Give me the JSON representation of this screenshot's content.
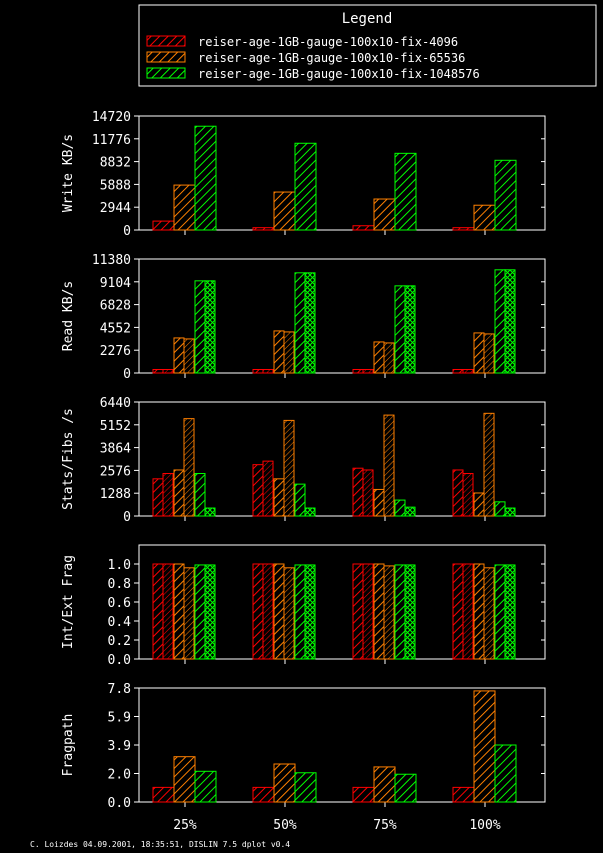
{
  "legend": {
    "title": "Legend",
    "entries": [
      {
        "label": "reiser-age-1GB-gauge-100x10-fix-4096",
        "color": "#ff0000"
      },
      {
        "label": "reiser-age-1GB-gauge-100x10-fix-65536",
        "color": "#ff8000"
      },
      {
        "label": "reiser-age-1GB-gauge-100x10-fix-1048576",
        "color": "#00ff00"
      }
    ]
  },
  "footer": "C. Loizdes 04.09.2001, 18:35:51, DISLIN 7.5 dplot v0.4",
  "chart_data": {
    "type": "bar",
    "categories": [
      "25%",
      "50%",
      "75%",
      "100%"
    ],
    "panels": [
      {
        "ylabel": "Write KB/s",
        "yticks": [
          "0",
          "2944",
          "5888",
          "8832",
          "11776",
          "14720"
        ],
        "ylim": [
          0,
          14720
        ],
        "paired": false,
        "series": [
          {
            "values": [
              1150,
              300,
              550,
              300
            ]
          },
          {
            "values": [
              5800,
              4900,
              4000,
              3200
            ]
          },
          {
            "values": [
              13400,
              11200,
              9900,
              9000
            ]
          }
        ]
      },
      {
        "ylabel": "Read KB/s",
        "yticks": [
          "0",
          "2276",
          "4552",
          "6828",
          "9104",
          "11380"
        ],
        "ylim": [
          0,
          11380
        ],
        "paired": true,
        "series": [
          {
            "values": [
              [
                350,
                350
              ],
              [
                350,
                350
              ],
              [
                350,
                350
              ],
              [
                350,
                350
              ]
            ]
          },
          {
            "values": [
              [
                3500,
                3400
              ],
              [
                4200,
                4100
              ],
              [
                3100,
                3000
              ],
              [
                4000,
                3900
              ]
            ]
          },
          {
            "values": [
              [
                9200,
                9200
              ],
              [
                10000,
                10000
              ],
              [
                8700,
                8700
              ],
              [
                10300,
                10300
              ]
            ]
          }
        ]
      },
      {
        "ylabel": "Stats/Fibs /s",
        "yticks": [
          "0",
          "1288",
          "2576",
          "3864",
          "5152",
          "6440"
        ],
        "ylim": [
          0,
          6440
        ],
        "paired": true,
        "series": [
          {
            "values": [
              [
                2100,
                2400
              ],
              [
                2900,
                3100
              ],
              [
                2700,
                2600
              ],
              [
                2600,
                2400
              ]
            ]
          },
          {
            "values": [
              [
                2600,
                5500
              ],
              [
                2100,
                5400
              ],
              [
                1500,
                5700
              ],
              [
                1300,
                5800
              ]
            ]
          },
          {
            "values": [
              [
                2400,
                450
              ],
              [
                1800,
                450
              ],
              [
                900,
                500
              ],
              [
                800,
                450
              ]
            ]
          }
        ]
      },
      {
        "ylabel": "Int/Ext Frag",
        "yticks": [
          "0.0",
          "0.2",
          "0.4",
          "0.6",
          "0.8",
          "1.0"
        ],
        "ylim": [
          0,
          1.2
        ],
        "paired": true,
        "series": [
          {
            "values": [
              [
                1.0,
                1.0
              ],
              [
                1.0,
                1.0
              ],
              [
                1.0,
                1.0
              ],
              [
                1.0,
                1.0
              ]
            ]
          },
          {
            "values": [
              [
                1.0,
                0.96
              ],
              [
                1.0,
                0.96
              ],
              [
                1.0,
                0.98
              ],
              [
                1.0,
                0.96
              ]
            ]
          },
          {
            "values": [
              [
                0.99,
                0.99
              ],
              [
                0.99,
                0.99
              ],
              [
                0.99,
                0.99
              ],
              [
                0.99,
                0.99
              ]
            ]
          }
        ]
      },
      {
        "ylabel": "Fragpath",
        "yticks": [
          "0.0",
          "2.0",
          "3.9",
          "5.9",
          "7.8"
        ],
        "ylim": [
          0,
          7.8
        ],
        "tick_values": [
          0,
          1.95,
          3.9,
          5.85,
          7.8
        ],
        "paired": false,
        "series": [
          {
            "values": [
              1.0,
              1.0,
              1.0,
              1.0
            ]
          },
          {
            "values": [
              3.1,
              2.6,
              2.4,
              7.6
            ]
          },
          {
            "values": [
              2.1,
              2.0,
              1.9,
              3.9
            ]
          }
        ]
      }
    ]
  }
}
